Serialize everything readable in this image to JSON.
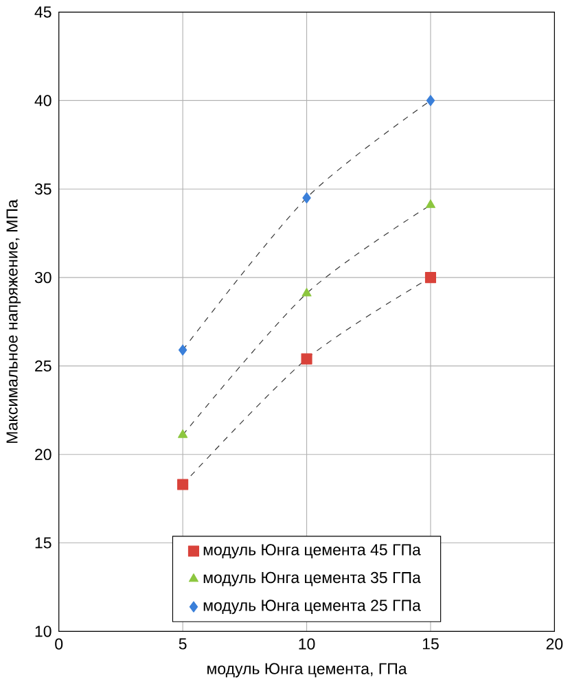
{
  "chart_data": {
    "type": "line",
    "xlabel": "модуль Юнга цемента, ГПа",
    "ylabel": "Максимальное напряжение, МПа",
    "x": [
      5,
      10,
      15
    ],
    "series": [
      {
        "name": "модуль Юнга цемента 45 ГПа",
        "color": "#d9423a",
        "marker": "square",
        "values": [
          18.3,
          25.4,
          30.0
        ]
      },
      {
        "name": "модуль Юнга цемента 35 ГПа",
        "color": "#8cc63f",
        "marker": "triangle",
        "values": [
          21.1,
          29.1,
          34.1
        ]
      },
      {
        "name": "модуль Юнга цемента 25 ГПа",
        "color": "#3a7fd9",
        "marker": "diamond",
        "values": [
          25.9,
          34.5,
          40.0
        ]
      }
    ],
    "xlim": [
      0,
      20
    ],
    "ylim": [
      10,
      45
    ],
    "xticks": [
      0,
      5,
      10,
      15,
      20
    ],
    "yticks": [
      10,
      15,
      20,
      25,
      30,
      35,
      40,
      45
    ],
    "grid": true,
    "legend": "bottom",
    "line_style": "dashed"
  }
}
